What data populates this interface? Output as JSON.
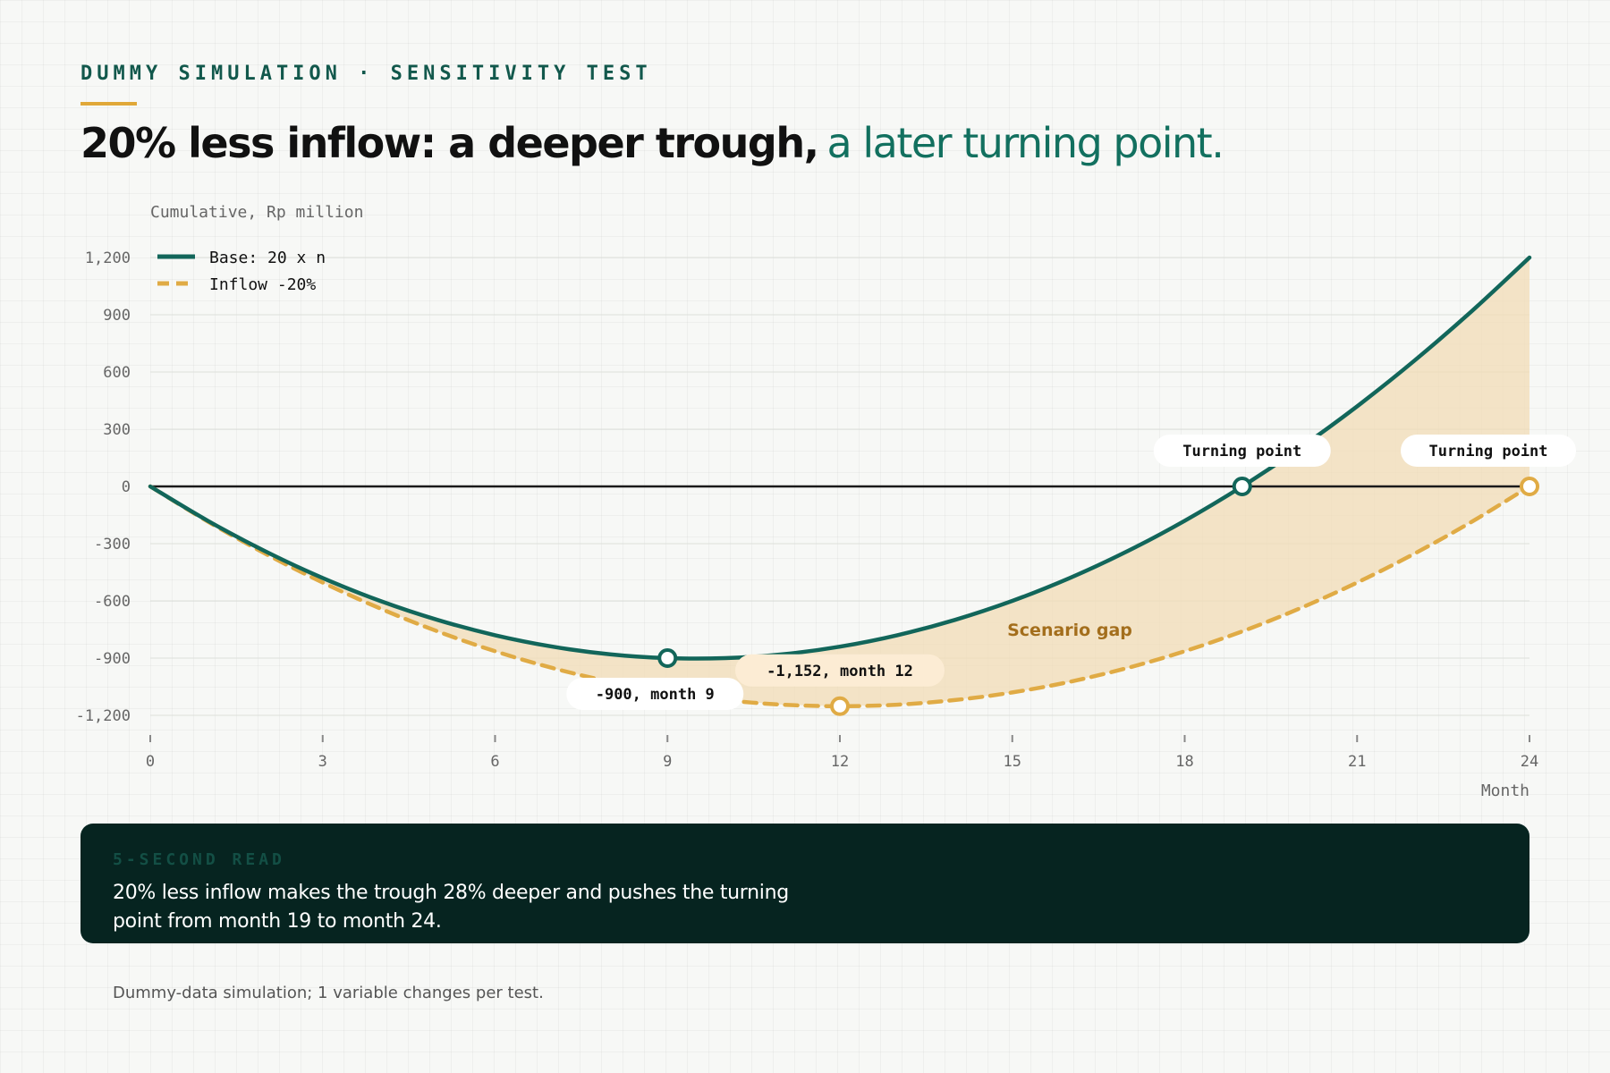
{
  "header": {
    "kicker": "DUMMY SIMULATION · SENSITIVITY TEST",
    "headline_strong": "20% less inflow: a deeper trough,",
    "headline_soft": "a later turning point."
  },
  "colors": {
    "base": "#12665a",
    "inflow": "#e0ab45",
    "gap_fill": "#f2dcb6",
    "axis_zero": "#1a1a1a",
    "gap_label": "#a36e1c",
    "accent_rule": "#e0a838"
  },
  "chart_data": {
    "type": "line",
    "ylabel": "Cumulative, Rp million",
    "xlabel": "Month",
    "xlim": [
      0,
      24
    ],
    "ylim": [
      -1200,
      1200
    ],
    "x_ticks": [
      0,
      3,
      6,
      9,
      12,
      15,
      18,
      21,
      24
    ],
    "y_ticks": [
      1200,
      900,
      600,
      300,
      0,
      -300,
      -600,
      -900,
      -1200
    ],
    "grid": true,
    "legend_position": "top-left",
    "x": [
      0,
      1,
      2,
      3,
      4,
      5,
      6,
      7,
      8,
      9,
      10,
      11,
      12,
      13,
      14,
      15,
      16,
      17,
      18,
      19,
      20,
      21,
      22,
      23,
      24
    ],
    "series": [
      {
        "name": "Base: 20 x n",
        "style": "solid",
        "values": [
          0,
          -180,
          -340,
          -480,
          -600,
          -700,
          -780,
          -840,
          -880,
          -900,
          -900,
          -880,
          -840,
          -780,
          -700,
          -600,
          -480,
          -340,
          -180,
          0,
          200,
          420,
          660,
          920,
          1200
        ]
      },
      {
        "name": "Inflow -20%",
        "style": "dashed",
        "values": [
          0,
          -184,
          -352,
          -504,
          -640,
          -760,
          -864,
          -952,
          -1024,
          -1080,
          -1120,
          -1144,
          -1152,
          -1144,
          -1120,
          -1080,
          -1024,
          -952,
          -864,
          -760,
          -640,
          -504,
          -352,
          -184,
          0
        ]
      }
    ],
    "shaded_region_label": "Scenario gap",
    "annotations": [
      {
        "text": "-900, month 9",
        "x": 9,
        "y": -900,
        "series": 0
      },
      {
        "text": "-1,152, month 12",
        "x": 12,
        "y": -1152,
        "series": 1
      },
      {
        "text": "Turning point",
        "x": 19,
        "y": 0,
        "series": 0
      },
      {
        "text": "Turning point",
        "x": 24,
        "y": 0,
        "series": 1
      }
    ]
  },
  "callout": {
    "kicker": "5-SECOND READ",
    "text": "20% less inflow makes the trough 28% deeper and pushes the turning point from month 19 to month 24."
  },
  "footnote": "Dummy-data simulation; 1 variable changes per test."
}
